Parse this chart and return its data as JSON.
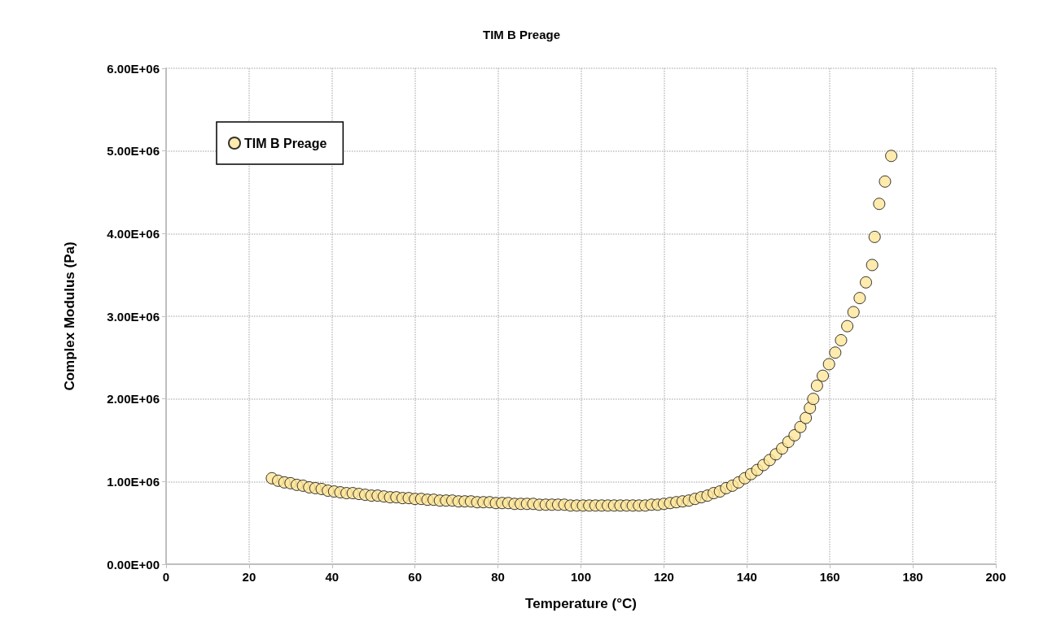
{
  "chart_data": {
    "type": "scatter",
    "title": "TIM B Preage",
    "xlabel": "Temperature (°C)",
    "ylabel": "Complex Modulus (Pa)",
    "series": [
      {
        "name": "TIM B Preage",
        "color": "#ffe699",
        "x": [
          25.5,
          27,
          28.5,
          30,
          31.5,
          33,
          34.5,
          36,
          37.5,
          39,
          40.5,
          42,
          43.5,
          45,
          46.5,
          48,
          49.5,
          51,
          52.5,
          54,
          55.5,
          57,
          58.5,
          60,
          61.5,
          63,
          64.5,
          66,
          67.5,
          69,
          70.5,
          72,
          73.5,
          75,
          76.5,
          78,
          79.5,
          81,
          82.5,
          84,
          85.5,
          87,
          88.5,
          90,
          91.5,
          93,
          94.5,
          96,
          97.5,
          99,
          100.5,
          102,
          103.5,
          105,
          106.5,
          108,
          109.5,
          111,
          112.5,
          114,
          115.5,
          117,
          118.5,
          120,
          121.5,
          123,
          124.5,
          126,
          127.5,
          129,
          130.5,
          132,
          133.5,
          135,
          136.5,
          138,
          139.5,
          141,
          142.5,
          144,
          145.5,
          147,
          148.5,
          150,
          151.5,
          152.9,
          154.2,
          155.2,
          156,
          156.9,
          158.3,
          159.8,
          161.3,
          162.7,
          164.2,
          165.7,
          167.2,
          168.7,
          170.2,
          170.8,
          171.9,
          173.3,
          174.8
        ],
        "values": [
          1040000,
          1010000,
          990000,
          980000,
          960000,
          950000,
          930000,
          920000,
          910000,
          890000,
          880000,
          870000,
          860000,
          860000,
          850000,
          840000,
          830000,
          830000,
          820000,
          810000,
          810000,
          800000,
          800000,
          790000,
          790000,
          780000,
          780000,
          770000,
          770000,
          770000,
          760000,
          760000,
          760000,
          750000,
          750000,
          750000,
          740000,
          740000,
          740000,
          730000,
          730000,
          730000,
          730000,
          720000,
          720000,
          720000,
          720000,
          720000,
          710000,
          710000,
          710000,
          710000,
          710000,
          710000,
          710000,
          710000,
          710000,
          710000,
          710000,
          710000,
          710000,
          720000,
          720000,
          730000,
          740000,
          750000,
          760000,
          770000,
          790000,
          810000,
          830000,
          860000,
          880000,
          920000,
          950000,
          990000,
          1040000,
          1090000,
          1140000,
          1200000,
          1260000,
          1330000,
          1400000,
          1480000,
          1560000,
          1660000,
          1770000,
          1890000,
          2000000,
          2160000,
          2280000,
          2420000,
          2560000,
          2710000,
          2880000,
          3050000,
          3220000,
          3410000,
          3620000,
          3960000,
          4360000,
          4630000,
          4940000
        ]
      }
    ],
    "xlim": [
      0,
      200
    ],
    "xticks": [
      0,
      20,
      40,
      60,
      80,
      100,
      120,
      140,
      160,
      180,
      200
    ],
    "ylim": [
      0,
      6000000
    ],
    "yticks": [
      {
        "value": 0,
        "label": "0.00E+00"
      },
      {
        "value": 1000000,
        "label": "1.00E+06"
      },
      {
        "value": 2000000,
        "label": "2.00E+06"
      },
      {
        "value": 3000000,
        "label": "3.00E+06"
      },
      {
        "value": 4000000,
        "label": "4.00E+06"
      },
      {
        "value": 5000000,
        "label": "5.00E+06"
      },
      {
        "value": 6000000,
        "label": "6.00E+06"
      }
    ],
    "grid": true,
    "legend": "top left",
    "marker": "circle"
  }
}
